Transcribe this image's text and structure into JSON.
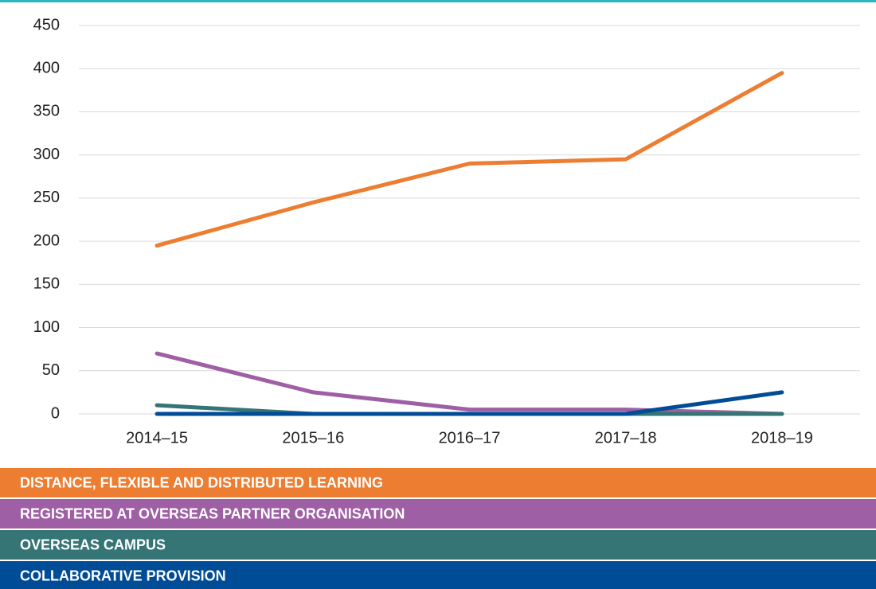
{
  "chart_data": {
    "type": "line",
    "categories": [
      "2014–15",
      "2015–16",
      "2016–17",
      "2017–18",
      "2018–19"
    ],
    "series": [
      {
        "name": "DISTANCE, FLEXIBLE AND DISTRIBUTED LEARNING",
        "color": "#ED7D31",
        "values": [
          195,
          245,
          290,
          295,
          395
        ]
      },
      {
        "name": "REGISTERED AT OVERSEAS PARTNER ORGANISATION",
        "color": "#9E5FA5",
        "values": [
          70,
          25,
          5,
          5,
          0
        ]
      },
      {
        "name": "OVERSEAS CAMPUS",
        "color": "#357576",
        "values": [
          10,
          0,
          0,
          0,
          0
        ]
      },
      {
        "name": "COLLABORATIVE PROVISION",
        "color": "#004C97",
        "values": [
          0,
          0,
          0,
          0,
          25
        ]
      }
    ],
    "ylim": [
      0,
      450
    ],
    "yticks": [
      0,
      50,
      100,
      150,
      200,
      250,
      300,
      350,
      400,
      450
    ],
    "grid": true
  }
}
